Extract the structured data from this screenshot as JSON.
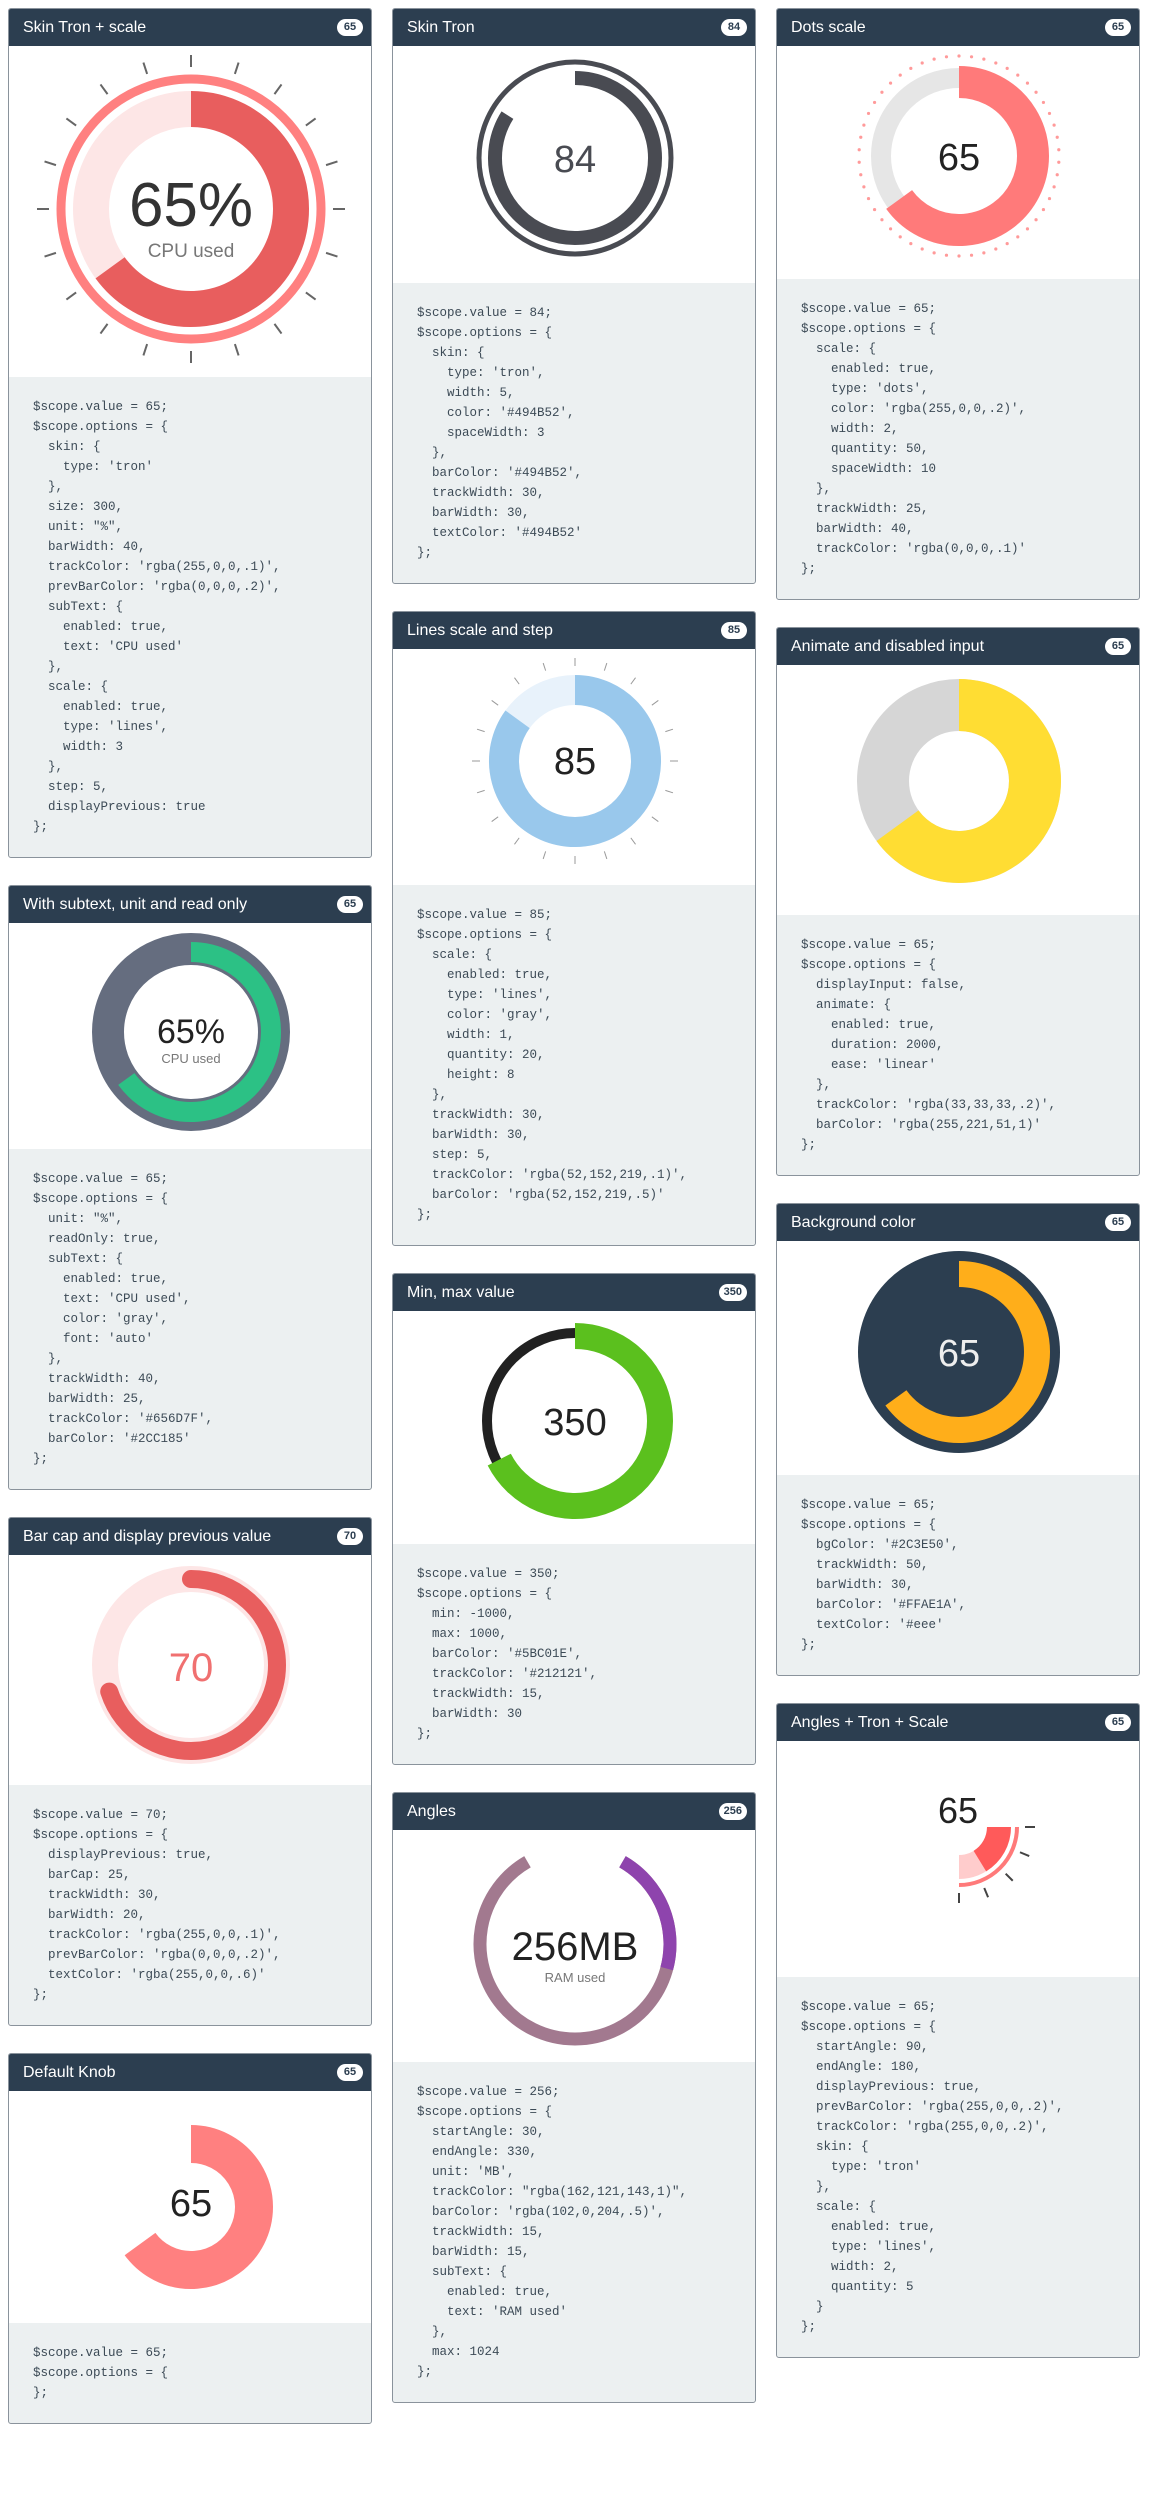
{
  "cards": [
    {
      "title": "Skin Tron + scale",
      "badge": "65",
      "value_text": "65%",
      "sub_text": "CPU used",
      "value": 65,
      "colors": {
        "bar": "#e85e5e",
        "track": "#fde6e6",
        "skin": "#ff8080",
        "text": "#333333"
      },
      "code": "$scope.value = 65;\n$scope.options = {\n  skin: {\n    type: 'tron'\n  },\n  size: 300,\n  unit: \"%\",\n  barWidth: 40,\n  trackColor: 'rgba(255,0,0,.1)',\n  prevBarColor: 'rgba(0,0,0,.2)',\n  subText: {\n    enabled: true,\n    text: 'CPU used'\n  },\n  scale: {\n    enabled: true,\n    type: 'lines',\n    width: 3\n  },\n  step: 5,\n  displayPrevious: true\n};"
    },
    {
      "title": "With subtext, unit and read only",
      "badge": "65",
      "value_text": "65%",
      "sub_text": "CPU used",
      "value": 65,
      "colors": {
        "bar": "#2cc185",
        "track": "#656d7f",
        "text": "#222222"
      },
      "code": "$scope.value = 65;\n$scope.options = {\n  unit: \"%\",\n  readOnly: true,\n  subText: {\n    enabled: true,\n    text: 'CPU used',\n    color: 'gray',\n    font: 'auto'\n  },\n  trackWidth: 40,\n  barWidth: 25,\n  trackColor: '#656D7F',\n  barColor: '#2CC185'\n};"
    },
    {
      "title": "Bar cap and display previous value",
      "badge": "70",
      "value_text": "70",
      "value": 70,
      "colors": {
        "bar": "#e85e5e",
        "track": "#fde6e6",
        "text": "#f07070"
      },
      "code": "$scope.value = 70;\n$scope.options = {\n  displayPrevious: true,\n  barCap: 25,\n  trackWidth: 30,\n  barWidth: 20,\n  trackColor: 'rgba(255,0,0,.1)',\n  prevBarColor: 'rgba(0,0,0,.2)',\n  textColor: 'rgba(255,0,0,.6)'\n};"
    },
    {
      "title": "Default Knob",
      "badge": "65",
      "value_text": "65",
      "value": 65,
      "colors": {
        "bar": "#ff8080",
        "text": "#222222"
      },
      "code": "$scope.value = 65;\n$scope.options = {\n};"
    },
    {
      "title": "Skin Tron",
      "badge": "84",
      "value_text": "84",
      "value": 84,
      "colors": {
        "bar": "#494b52",
        "text": "#494b52"
      },
      "code": "$scope.value = 84;\n$scope.options = {\n  skin: {\n    type: 'tron',\n    width: 5,\n    color: '#494B52',\n    spaceWidth: 3\n  },\n  barColor: '#494B52',\n  trackWidth: 30,\n  barWidth: 30,\n  textColor: '#494B52'\n};"
    },
    {
      "title": "Lines scale and step",
      "badge": "85",
      "value_text": "85",
      "value": 85,
      "colors": {
        "bar": "#99c8ec",
        "track": "#e8f2fb",
        "text": "#222222"
      },
      "code": "$scope.value = 85;\n$scope.options = {\n  scale: {\n    enabled: true,\n    type: 'lines',\n    color: 'gray',\n    width: 1,\n    quantity: 20,\n    height: 8\n  },\n  trackWidth: 30,\n  barWidth: 30,\n  step: 5,\n  trackColor: 'rgba(52,152,219,.1)',\n  barColor: 'rgba(52,152,219,.5)'\n};"
    },
    {
      "title": "Min, max value",
      "badge": "350",
      "value_text": "350",
      "value": 350,
      "colors": {
        "bar": "#5bc01e",
        "track": "#212121",
        "text": "#222222"
      },
      "code": "$scope.value = 350;\n$scope.options = {\n  min: -1000,\n  max: 1000,\n  barColor: '#5BC01E',\n  trackColor: '#212121',\n  trackWidth: 15,\n  barWidth: 30\n};"
    },
    {
      "title": "Angles",
      "badge": "256",
      "value_text": "256MB",
      "sub_text": "RAM used",
      "value": 256,
      "colors": {
        "bar": "#8e44ad",
        "track": "#a2798f",
        "text": "#222222"
      },
      "code": "$scope.value = 256;\n$scope.options = {\n  startAngle: 30,\n  endAngle: 330,\n  unit: 'MB',\n  trackColor: \"rgba(162,121,143,1)\",\n  barColor: 'rgba(102,0,204,.5)',\n  trackWidth: 15,\n  barWidth: 15,\n  subText: {\n    enabled: true,\n    text: 'RAM used'\n  },\n  max: 1024\n};"
    },
    {
      "title": "Dots scale",
      "badge": "65",
      "value_text": "65",
      "value": 65,
      "colors": {
        "bar": "#ff7a7a",
        "track": "#e6e6e6",
        "dots": "#ff9a9a",
        "text": "#222222"
      },
      "code": "$scope.value = 65;\n$scope.options = {\n  scale: {\n    enabled: true,\n    type: 'dots',\n    color: 'rgba(255,0,0,.2)',\n    width: 2,\n    quantity: 50,\n    spaceWidth: 10\n  },\n  trackWidth: 25,\n  barWidth: 40,\n  trackColor: 'rgba(0,0,0,.1)'\n};"
    },
    {
      "title": "Animate and disabled input",
      "badge": "65",
      "value": 65,
      "colors": {
        "bar": "#ffdd33",
        "track": "#d6d6d6"
      },
      "code": "$scope.value = 65;\n$scope.options = {\n  displayInput: false,\n  animate: {\n    enabled: true,\n    duration: 2000,\n    ease: 'linear'\n  },\n  trackColor: 'rgba(33,33,33,.2)',\n  barColor: 'rgba(255,221,51,1)'\n};"
    },
    {
      "title": "Background color",
      "badge": "65",
      "value_text": "65",
      "value": 65,
      "colors": {
        "bar": "#ffae1a",
        "bg": "#2c3e50",
        "text": "#eeeeee"
      },
      "code": "$scope.value = 65;\n$scope.options = {\n  bgColor: '#2C3E50',\n  trackWidth: 50,\n  barWidth: 30,\n  barColor: '#FFAE1A',\n  textColor: '#eee'\n};"
    },
    {
      "title": "Angles + Tron + Scale",
      "badge": "65",
      "value_text": "65",
      "value": 65,
      "colors": {
        "bar": "#ff5a5a",
        "track": "#ffcccc",
        "text": "#222222"
      },
      "code": "$scope.value = 65;\n$scope.options = {\n  startAngle: 90,\n  endAngle: 180,\n  displayPrevious: true,\n  prevBarColor: 'rgba(255,0,0,.2)',\n  trackColor: 'rgba(255,0,0,.2)',\n  skin: {\n    type: 'tron'\n  },\n  scale: {\n    enabled: true,\n    type: 'lines',\n    width: 2,\n    quantity: 5\n  }\n};"
    }
  ]
}
